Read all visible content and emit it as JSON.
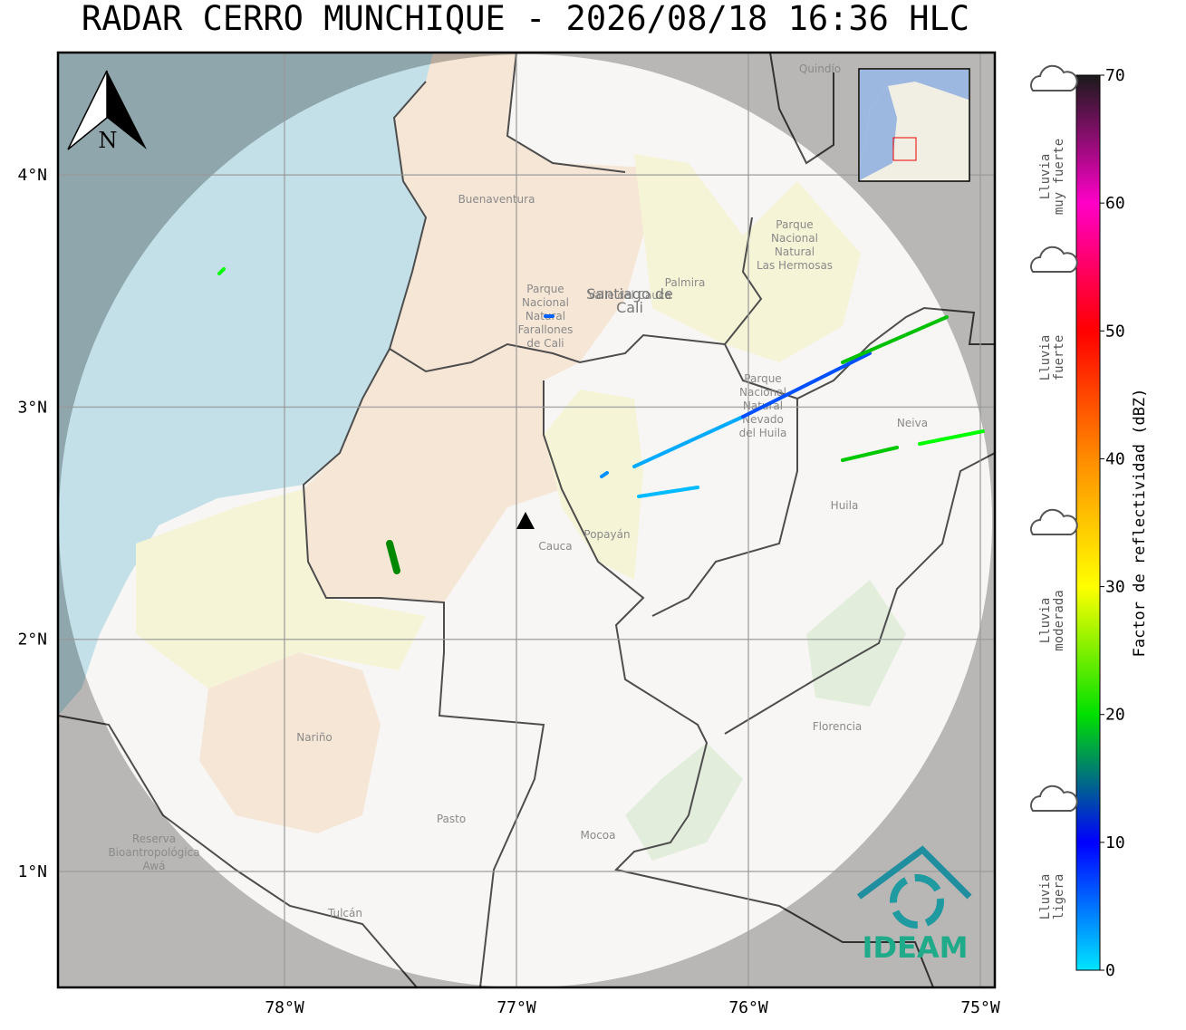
{
  "title": "RADAR CERRO MUNCHIQUE - 2026/08/18 16:36 HLC",
  "map": {
    "lat_ticks": [
      {
        "value": 4,
        "label": "4°N"
      },
      {
        "value": 3,
        "label": "3°N"
      },
      {
        "value": 2,
        "label": "2°N"
      },
      {
        "value": 1,
        "label": "1°N"
      }
    ],
    "lon_ticks": [
      {
        "value": -78,
        "label": "78°W"
      },
      {
        "value": -77,
        "label": "77°W"
      },
      {
        "value": -76,
        "label": "76°W"
      },
      {
        "value": -75,
        "label": "75°W"
      }
    ],
    "north_label": "N",
    "logo": "IDEAM",
    "places": [
      {
        "lines": [
          "Buenaventura"
        ]
      },
      {
        "lines": [
          "Valle del Cauca"
        ]
      },
      {
        "lines": [
          "Santiago de",
          "Cali"
        ]
      },
      {
        "lines": [
          "Palmira"
        ]
      },
      {
        "lines": [
          "Parque",
          "Nacional",
          "Natural",
          "Las Hermosas"
        ]
      },
      {
        "lines": [
          "Parque",
          "Nacional",
          "Natural",
          "Farallones",
          "de Cali"
        ]
      },
      {
        "lines": [
          "Parque",
          "Nacional",
          "Natural",
          "Nevado",
          "del Huila"
        ]
      },
      {
        "lines": [
          "Cauca"
        ]
      },
      {
        "lines": [
          "Popayán"
        ]
      },
      {
        "lines": [
          "Huila"
        ]
      },
      {
        "lines": [
          "Neiva"
        ]
      },
      {
        "lines": [
          "Nariño"
        ]
      },
      {
        "lines": [
          "Pasto"
        ]
      },
      {
        "lines": [
          "Mocoa"
        ]
      },
      {
        "lines": [
          "Florencia"
        ]
      },
      {
        "lines": [
          "Tulcán"
        ]
      },
      {
        "lines": [
          "Reserva",
          "Bioantropológica",
          "Awá"
        ]
      },
      {
        "lines": [
          "Quindío"
        ]
      }
    ]
  },
  "colorbar": {
    "label": "Factor de reflectividad (dBZ)",
    "ticks": [
      0,
      10,
      20,
      30,
      40,
      50,
      60,
      70
    ],
    "colors": [
      "#00e5ff",
      "#0000ff",
      "#00e000",
      "#ffff00",
      "#ff8c00",
      "#ff0000",
      "#ff00c8",
      "#1a1a1a"
    ],
    "range": [
      0,
      70
    ]
  },
  "rain_levels": [
    [
      "Lluvia",
      "muy fuerte"
    ],
    [
      "Lluvia",
      "fuerte"
    ],
    [
      "Lluvia",
      "moderada"
    ],
    [
      "Lluvia",
      "ligera"
    ]
  ]
}
